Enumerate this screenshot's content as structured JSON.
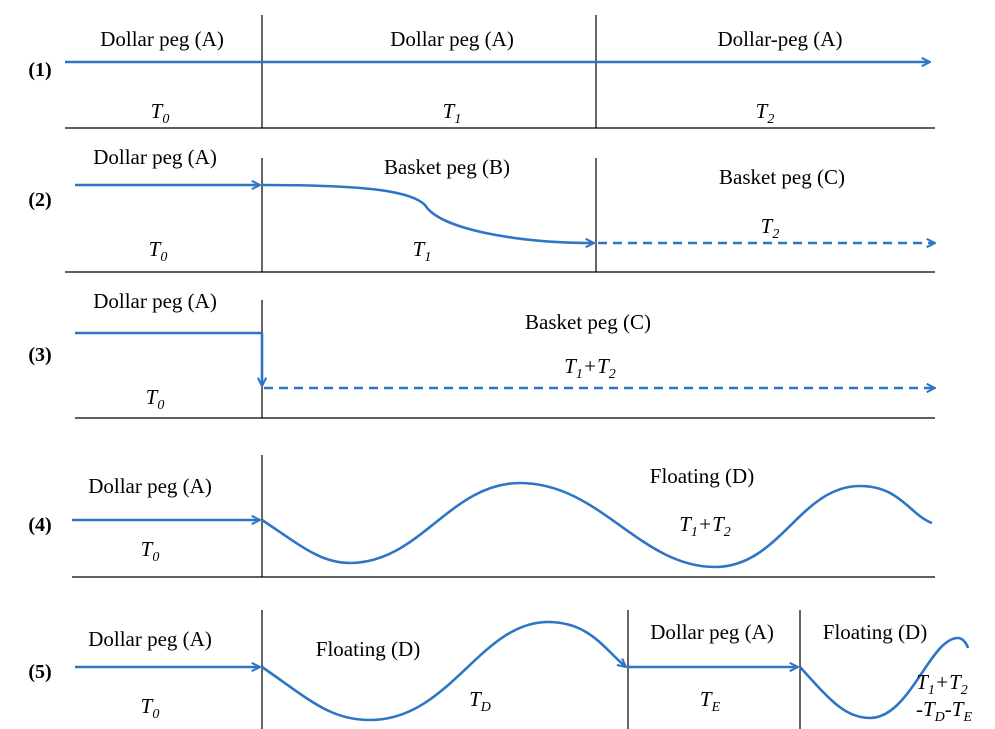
{
  "rows": [
    {
      "number": "(1)",
      "labels": [
        "Dollar peg (A)",
        "Dollar peg (A)",
        "Dollar-peg (A)"
      ],
      "times": [
        "T0",
        "T1",
        "T2"
      ]
    },
    {
      "number": "(2)",
      "labels": [
        "Dollar peg (A)",
        "Basket peg (B)",
        "Basket peg (C)"
      ],
      "times": [
        "T0",
        "T1",
        "T2"
      ]
    },
    {
      "number": "(3)",
      "labels": [
        "Dollar peg (A)",
        "Basket peg (C)"
      ],
      "times": [
        "T0",
        "T1+T2"
      ]
    },
    {
      "number": "(4)",
      "labels": [
        "Dollar peg (A)",
        "Floating (D)"
      ],
      "times": [
        "T0",
        "T1+T2"
      ]
    },
    {
      "number": "(5)",
      "labels": [
        "Dollar peg (A)",
        "Floating (D)",
        "Dollar peg (A)",
        "Floating (D)"
      ],
      "times": [
        "T0",
        "TD",
        "TE",
        "T1+T2",
        "-TD-TE"
      ]
    }
  ]
}
